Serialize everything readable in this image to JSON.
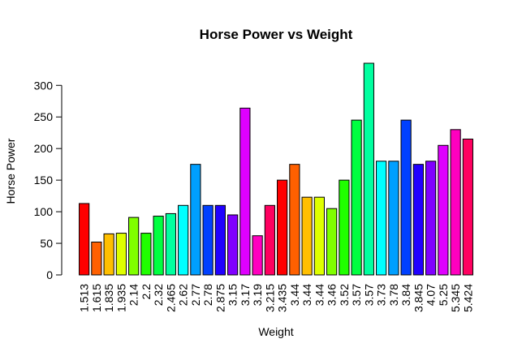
{
  "chart_data": {
    "type": "bar",
    "title": "Horse Power vs Weight",
    "xlabel": "Weight",
    "ylabel": "Horse Power",
    "ylim": [
      0,
      335
    ],
    "yticks": [
      0,
      50,
      100,
      150,
      200,
      250,
      300
    ],
    "grid": false,
    "categories": [
      "1.513",
      "1.615",
      "1.835",
      "1.935",
      "2.14",
      "2.2",
      "2.32",
      "2.465",
      "2.62",
      "2.77",
      "2.78",
      "2.875",
      "3.15",
      "3.17",
      "3.19",
      "3.215",
      "3.435",
      "3.44",
      "3.44",
      "3.44",
      "3.46",
      "3.52",
      "3.57",
      "3.57",
      "3.73",
      "3.78",
      "3.84",
      "3.845",
      "4.07",
      "5.25",
      "5.345",
      "5.424"
    ],
    "values": [
      113,
      52,
      65,
      66,
      91,
      66,
      93,
      97,
      110,
      175,
      110,
      110,
      95,
      264,
      62,
      110,
      150,
      175,
      123,
      123,
      105,
      150,
      245,
      335,
      180,
      180,
      245,
      175,
      180,
      205,
      230,
      215
    ],
    "colors": [
      "#FF0000",
      "#FF6000",
      "#FFBF00",
      "#DFFF00",
      "#80FF00",
      "#20FF00",
      "#00FF40",
      "#00FF9F",
      "#00FFFF",
      "#009FFF",
      "#0040FF",
      "#2000FF",
      "#8000FF",
      "#DF00FF",
      "#FF00BF",
      "#FF0060",
      "#FF0000",
      "#FF6000",
      "#FFBF00",
      "#DFFF00",
      "#80FF00",
      "#20FF00",
      "#00FF40",
      "#00FF9F",
      "#00FFFF",
      "#009FFF",
      "#0040FF",
      "#2000FF",
      "#8000FF",
      "#DF00FF",
      "#FF00BF",
      "#FF0060"
    ]
  }
}
